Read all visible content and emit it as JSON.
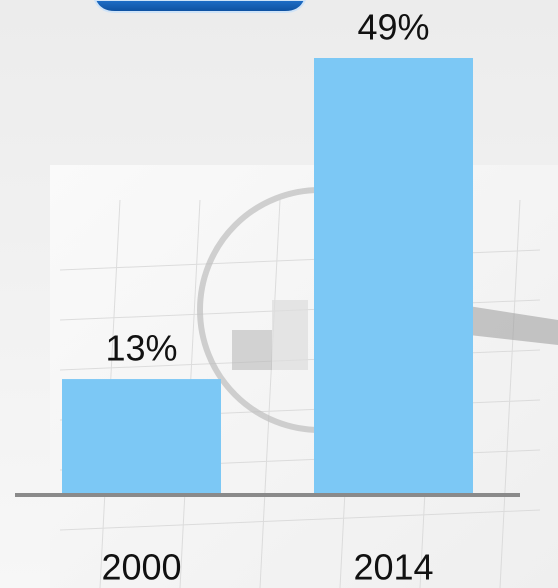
{
  "chart_data": {
    "type": "bar",
    "categories": [
      "2000",
      "2014"
    ],
    "values": [
      13,
      49
    ],
    "value_labels": [
      "13%",
      "49%"
    ],
    "color": "#7cc8f5"
  }
}
